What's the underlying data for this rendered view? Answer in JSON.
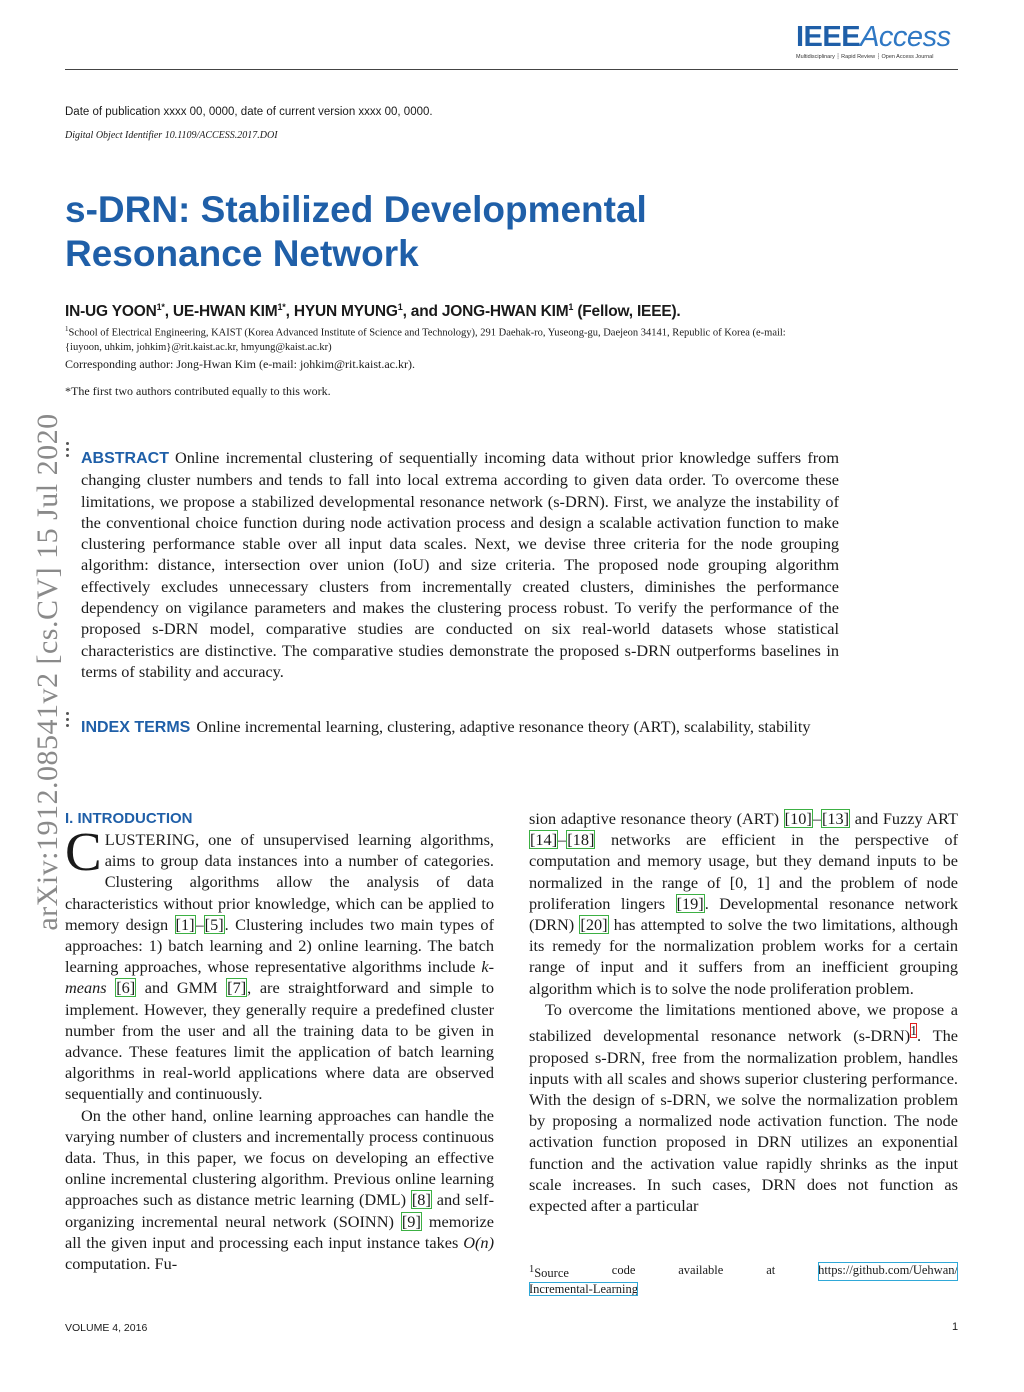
{
  "header": {
    "logo_ieee": "IEEE",
    "logo_access": "Access",
    "logo_tagline": "Multidisciplinary ┆ Rapid Review ┆ Open Access Journal",
    "publication_date": "Date of publication xxxx 00, 0000, date of current version xxxx 00, 0000.",
    "doi": "Digital Object Identifier 10.1109/ACCESS.2017.DOI"
  },
  "arxiv_stamp": "arXiv:1912.08541v2  [cs.CV]  15 Jul 2020",
  "paper": {
    "title_line1": "s-DRN: Stabilized Developmental",
    "title_line2": "Resonance Network",
    "authors": [
      {
        "name": "IN-UG YOON",
        "sup": "1*"
      },
      {
        "name": "UE-HWAN KIM",
        "sup": "1*"
      },
      {
        "name": "HYUN MYUNG",
        "sup": "1"
      },
      {
        "name": "JONG-HWAN KIM",
        "sup": "1"
      }
    ],
    "author_sep": ", ",
    "author_and": ", and ",
    "author_suffix": " (Fellow, IEEE).",
    "affiliation_sup": "1",
    "affiliation": "School of Electrical Engineering, KAIST (Korea Advanced Institute of Science and Technology), 291 Daehak-ro, Yuseong-gu, Daejeon 34141, Republic of Korea (e-mail: {iuyoon, uhkim, johkim}@rit.kaist.ac.kr, hmyung@kaist.ac.kr)",
    "corresponding": "Corresponding author: Jong-Hwan Kim (e-mail: johkim@rit.kaist.ac.kr).",
    "equal_contribution": "*The first two authors contributed equally to this work.",
    "abstract_label": "ABSTRACT",
    "abstract": "Online incremental clustering of sequentially incoming data without prior knowledge suffers from changing cluster numbers and tends to fall into local extrema according to given data order. To overcome these limitations, we propose a stabilized developmental resonance network (s-DRN). First, we analyze the instability of the conventional choice function during node activation process and design a scalable activation function to make clustering performance stable over all input data scales. Next, we devise three criteria for the node grouping algorithm: distance, intersection over union (IoU) and size criteria. The proposed node grouping algorithm effectively excludes unnecessary clusters from incrementally created clusters, diminishes the performance dependency on vigilance parameters and makes the clustering process robust. To verify the performance of the proposed s-DRN model, comparative studies are conducted on six real-world datasets whose statistical characteristics are distinctive. The comparative studies demonstrate the proposed s-DRN outperforms baselines in terms of stability and accuracy.",
    "index_terms_label": "INDEX TERMS",
    "index_terms": "Online incremental learning, clustering, adaptive resonance theory (ART), scalability, stability"
  },
  "body": {
    "section_heading": "I. INTRODUCTION",
    "dropcap": "C",
    "left_paragraphs": [
      "LUSTERING, one of unsupervised learning algorithms, aims to group data instances into a number of categories. Clustering algorithms allow the analysis of data characteristics without prior knowledge, which can be applied to memory design [1]–[5]. Clustering includes two main types of approaches: 1) batch learning and 2) online learning. The batch learning approaches, whose representative algorithms include k-means [6] and GMM [7], are straightforward and simple to implement. However, they generally require a predefined cluster number from the user and all the training data to be given in advance. These features limit the application of batch learning algorithms in real-world applications where data are observed sequentially and continuously.",
      "On the other hand, online learning approaches can handle the varying number of clusters and incrementally process continuous data. Thus, in this paper, we focus on developing an effective online incremental clustering algorithm. Previous online learning approaches such as distance metric learning (DML) [8] and self-organizing incremental neural network (SOINN) [9] memorize all the given input and processing each input instance takes O(n) computation. Fu-"
    ],
    "right_paragraphs": [
      "sion adaptive resonance theory (ART) [10]–[13] and Fuzzy ART [14]–[18] networks are efficient in the perspective of computation and memory usage, but they demand inputs to be normalized in the range of [0, 1] and the problem of node proliferation lingers [19]. Developmental resonance network (DRN) [20] has attempted to solve the two limitations, although its remedy for the normalization problem works for a certain range of input and it suffers from an inefficient grouping algorithm which is to solve the node proliferation problem.",
      "To overcome the limitations mentioned above, we propose a stabilized developmental resonance network (s-DRN){1}. The proposed s-DRN, free from the normalization problem, handles inputs with all scales and shows superior clustering performance. With the design of s-DRN, we solve the normalization problem by proposing a normalized node activation function. The node activation function proposed in DRN utilizes an exponential function and the activation value rapidly shrinks as the input scale increases. In such cases, DRN does not function as expected after a particular"
    ],
    "footnote": {
      "mark": "1",
      "words": [
        "Source",
        "code",
        "available",
        "at"
      ],
      "url_part1": "https://github.com/Uehwan/",
      "url_part2": "Incremental-Learning"
    }
  },
  "footer": {
    "volume": "VOLUME 4, 2016",
    "page_number": "1"
  },
  "colors": {
    "accent_blue": "#1f5fa8",
    "citation_box": "#3cb043",
    "footnote_box": "#e02020",
    "url_box": "#2fa8d8",
    "arxiv_gray": "#8a8a8a"
  }
}
